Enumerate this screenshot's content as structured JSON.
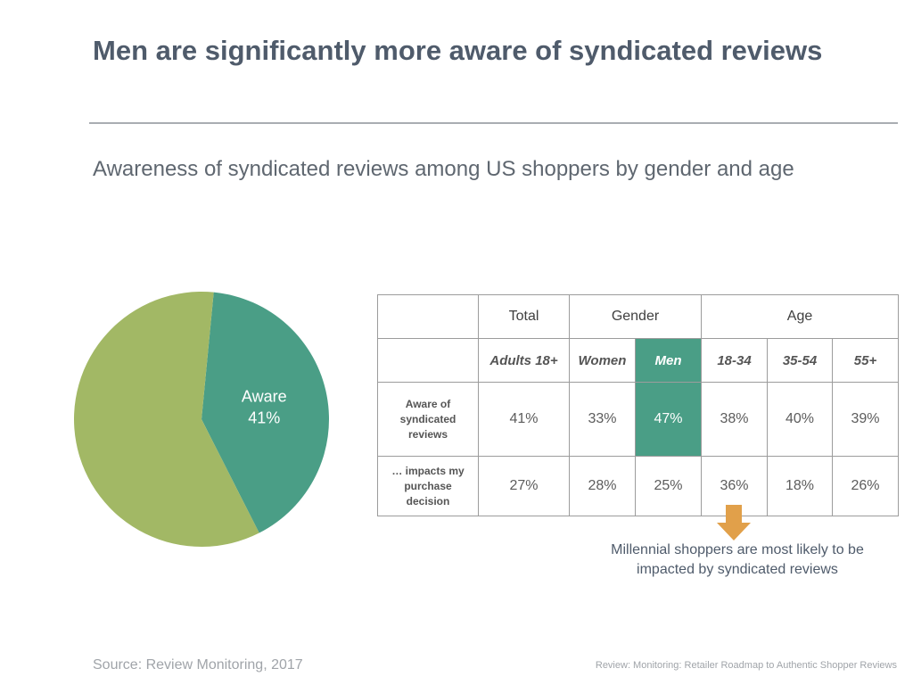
{
  "title": "Men are significantly more aware of syndicated reviews",
  "subtitle": "Awareness of syndicated reviews among US shoppers by gender and age",
  "colors": {
    "aware": "#4a9e86",
    "not_aware": "#a2b865",
    "highlight": "#4a9e86",
    "arrow": "#e1a04a"
  },
  "chart_data": [
    {
      "type": "pie",
      "slices": [
        {
          "label": "Aware",
          "value": 41,
          "display": "41%"
        },
        {
          "label": "",
          "value": 59
        }
      ]
    },
    {
      "type": "table",
      "group_headers": [
        {
          "label": "",
          "span": 1
        },
        {
          "label": "Total",
          "span": 1
        },
        {
          "label": "Gender",
          "span": 2
        },
        {
          "label": "Age",
          "span": 3
        }
      ],
      "columns": [
        "Adults 18+",
        "Women",
        "Men",
        "18-34",
        "35-54",
        "55+"
      ],
      "rows": [
        {
          "label": "Aware of syndicated reviews",
          "values": [
            "41%",
            "33%",
            "47%",
            "38%",
            "40%",
            "39%"
          ]
        },
        {
          "label": "… impacts my purchase decision",
          "values": [
            "27%",
            "28%",
            "25%",
            "36%",
            "18%",
            "26%"
          ]
        }
      ],
      "highlighted_column": "Men"
    }
  ],
  "callout": "Millennial shoppers are most likely to be impacted by syndicated reviews",
  "source": "Source: Review Monitoring, 2017",
  "credit": "Review: Monitoring: Retailer Roadmap to Authentic Shopper Reviews"
}
